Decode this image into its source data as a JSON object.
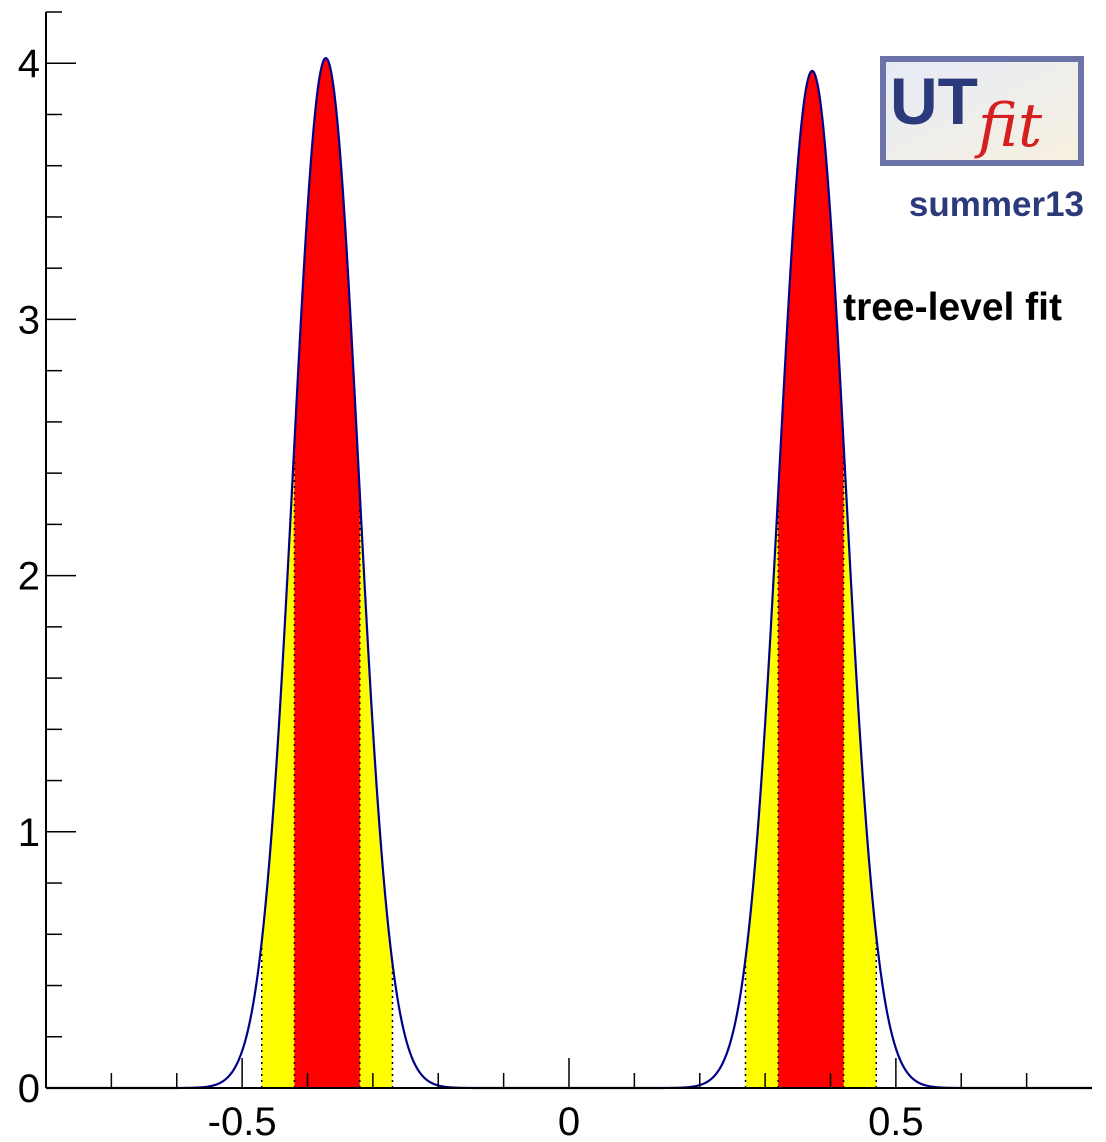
{
  "chart_data": {
    "type": "area",
    "title": "",
    "xlabel": "",
    "ylabel": "",
    "xlim": [
      -0.8,
      0.8
    ],
    "ylim": [
      0,
      4.2
    ],
    "x_ticks": [
      -0.5,
      0,
      0.5
    ],
    "x_tick_labels": [
      "-0.5",
      "0",
      "0.5"
    ],
    "y_ticks": [
      0,
      1,
      2,
      3,
      4
    ],
    "y_tick_labels": [
      "0",
      "1",
      "2",
      "3",
      "4"
    ],
    "grid": false,
    "curve_color": "#00008b",
    "band_68_color": "#ff0000",
    "band_95_color": "#ffff00",
    "peaks": [
      {
        "mean": -0.372,
        "peak_height": 4.02,
        "interval_68": [
          -0.42,
          -0.32
        ],
        "interval_95": [
          -0.47,
          -0.27
        ]
      },
      {
        "mean": 0.372,
        "peak_height": 3.97,
        "interval_68": [
          0.32,
          0.42
        ],
        "interval_95": [
          0.27,
          0.47
        ]
      }
    ],
    "annotations": {
      "logo_main": "UT",
      "logo_sub": "fit",
      "edition": "summer13",
      "label": "tree-level fit"
    }
  }
}
